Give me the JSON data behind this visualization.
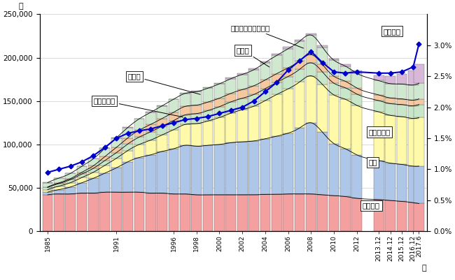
{
  "years_numeric": [
    1985,
    1986,
    1987,
    1988,
    1989,
    1990,
    1991,
    1992,
    1993,
    1994,
    1995,
    1996,
    1997,
    1998,
    1999,
    2000,
    2001,
    2002,
    2003,
    2004,
    2005,
    2006,
    2007,
    2008,
    2009,
    2010,
    2011,
    2012,
    2013.92,
    2014.92,
    2015.92,
    2016.92,
    2017.42
  ],
  "xtick_positions": [
    1985,
    1991,
    1996,
    1998,
    2000,
    2002,
    2004,
    2006,
    2008,
    2010,
    2012,
    2013.92,
    2014.92,
    2015.92,
    2016.92,
    2017.42
  ],
  "xtick_labels": [
    "1985",
    "1991",
    "1996",
    "1998",
    "2000",
    "2002",
    "2004",
    "2006",
    "2008",
    "2010",
    "2012",
    "2013.12",
    "2014.12",
    "2015.12",
    "2016.12",
    "2017.6"
  ],
  "korea": [
    42000,
    43000,
    43000,
    44000,
    44000,
    45000,
    45000,
    45000,
    45000,
    44000,
    44000,
    43000,
    43000,
    42000,
    42000,
    42000,
    42000,
    42000,
    42000,
    42500,
    42500,
    43000,
    43000,
    43000,
    42000,
    41000,
    40000,
    38000,
    36500,
    35500,
    34500,
    33000,
    32000
  ],
  "brazil": [
    3000,
    5000,
    8000,
    12000,
    17000,
    22000,
    28000,
    35000,
    40000,
    44000,
    48000,
    52000,
    56000,
    56000,
    57000,
    58000,
    60000,
    61000,
    62000,
    64000,
    67000,
    70000,
    76000,
    82000,
    72000,
    60000,
    55000,
    50000,
    45000,
    43000,
    42500,
    42000,
    43000
  ],
  "china": [
    3000,
    4000,
    5000,
    6000,
    7000,
    9000,
    11000,
    13000,
    15000,
    17000,
    19000,
    22000,
    24000,
    26000,
    28000,
    31000,
    34000,
    37000,
    40000,
    44000,
    48000,
    51000,
    53000,
    54000,
    55000,
    56000,
    57000,
    57000,
    56000,
    55000,
    55000,
    55000,
    56000
  ],
  "philippines": [
    2500,
    3000,
    3500,
    4000,
    4500,
    5500,
    6500,
    7500,
    8500,
    9500,
    10000,
    10500,
    11000,
    11500,
    12000,
    12500,
    13000,
    13200,
    13500,
    13800,
    14000,
    14200,
    14500,
    15000,
    14500,
    13500,
    13200,
    13000,
    13000,
    13500,
    14000,
    14500,
    15000
  ],
  "peru": [
    500,
    800,
    1200,
    2000,
    3000,
    4500,
    6000,
    7000,
    8000,
    8500,
    9000,
    9500,
    9800,
    9800,
    9800,
    9800,
    9800,
    10000,
    10000,
    10000,
    10000,
    10000,
    9800,
    9500,
    8500,
    8000,
    7500,
    7000,
    6500,
    6500,
    6500,
    6500,
    6500
  ],
  "vietnam": [
    100,
    100,
    100,
    100,
    100,
    100,
    200,
    300,
    400,
    400,
    400,
    500,
    600,
    700,
    700,
    800,
    900,
    1000,
    1200,
    1500,
    1700,
    2000,
    2000,
    2000,
    2000,
    2000,
    2500,
    3000,
    6000,
    9000,
    12000,
    17000,
    22000
  ],
  "other": [
    5000,
    5500,
    6000,
    7000,
    8000,
    9500,
    11000,
    12000,
    13000,
    14000,
    14500,
    15000,
    15000,
    15500,
    16000,
    16500,
    17000,
    17500,
    18500,
    20000,
    21000,
    22000,
    22500,
    22500,
    20000,
    18500,
    17500,
    17000,
    16500,
    16500,
    17000,
    17500,
    18000
  ],
  "ratio": [
    0.95,
    1.0,
    1.05,
    1.12,
    1.22,
    1.35,
    1.5,
    1.58,
    1.62,
    1.65,
    1.7,
    1.75,
    1.8,
    1.82,
    1.85,
    1.9,
    1.95,
    2.0,
    2.1,
    2.25,
    2.4,
    2.6,
    2.75,
    2.9,
    2.72,
    2.57,
    2.55,
    2.57,
    2.55,
    2.55,
    2.57,
    2.65,
    3.02
  ],
  "korea_color": "#f4a0a0",
  "brazil_color": "#aec6e8",
  "china_color": "#fffaaa",
  "philippines_color": "#c8e6c8",
  "peru_color": "#f4c8a0",
  "vietnam_color": "#d8b8d8",
  "other_color": "#d0e8d0",
  "ratio_color": "#0000cc",
  "ylim_left": [
    0,
    250000
  ],
  "ylim_right": [
    0.0,
    3.5
  ],
  "yticks_left": [
    0,
    50000,
    100000,
    150000,
    200000,
    250000
  ],
  "yticks_right": [
    0.0,
    0.5,
    1.0,
    1.5,
    2.0,
    2.5,
    3.0
  ],
  "label_brazil": "ブラジル",
  "label_china": "中国",
  "label_korea": "韓国・朝鮮",
  "label_philippines": "フィリピン",
  "label_peru": "ペルー",
  "label_vietnam": "ベトナム",
  "label_other": "その他",
  "label_ratio": "総人口に占める割合",
  "label_hito": "人",
  "label_nen": "年"
}
